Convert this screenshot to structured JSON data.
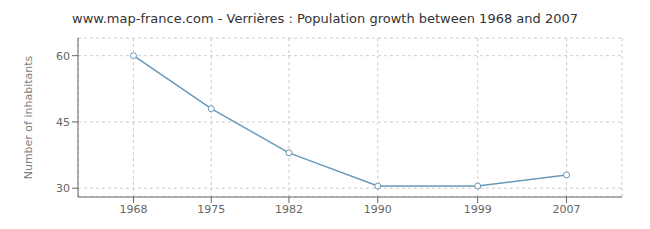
{
  "chart_data": {
    "type": "line",
    "title": "www.map-france.com - Verrières : Population growth between 1968 and 2007",
    "ylabel": "Number of inhabitants",
    "x": [
      1968,
      1975,
      1982,
      1990,
      1999,
      2007
    ],
    "values": [
      60,
      48,
      38,
      30.5,
      30.5,
      33
    ],
    "color": "#6699bb",
    "marker": "o",
    "xlim": [
      1963,
      2012
    ],
    "xticks": [
      1968,
      1975,
      1982,
      1990,
      1999,
      2007
    ],
    "ylim": [
      28,
      64
    ],
    "yticks": [
      30,
      45,
      60
    ],
    "grid": true
  }
}
